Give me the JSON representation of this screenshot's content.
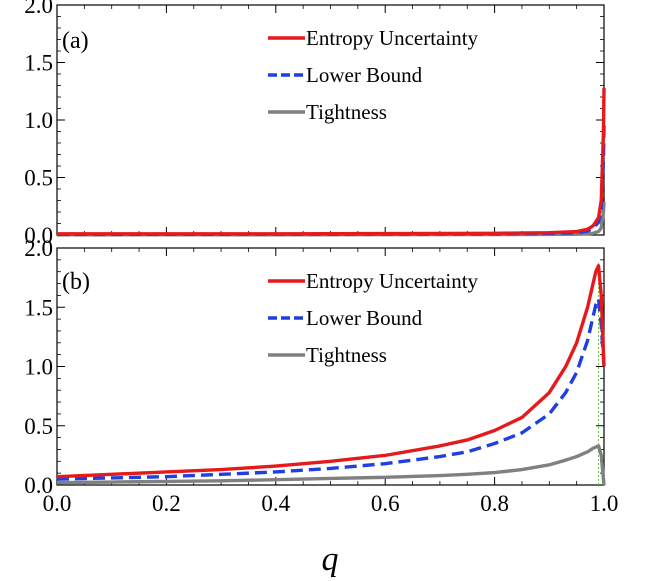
{
  "chart_data": [
    {
      "type": "line",
      "panel_label": "(a)",
      "xlim": [
        0,
        1
      ],
      "ylim": [
        0,
        2
      ],
      "yticks": [
        "0.0",
        "0.5",
        "1.0",
        "1.5",
        "2.0"
      ],
      "legend_position": "top-right",
      "series": [
        {
          "name": "Entropy Uncertainty",
          "color": "#e41a1c",
          "dash": "solid",
          "x": [
            0.0,
            0.2,
            0.4,
            0.6,
            0.8,
            0.9,
            0.95,
            0.97,
            0.98,
            0.99,
            0.995,
            0.999,
            1.0
          ],
          "y": [
            0.01,
            0.01,
            0.01,
            0.012,
            0.015,
            0.02,
            0.03,
            0.05,
            0.08,
            0.15,
            0.3,
            0.9,
            1.28
          ]
        },
        {
          "name": "Lower Bound",
          "color": "#1f3fe0",
          "dash": "dashed",
          "x": [
            0.0,
            0.2,
            0.4,
            0.6,
            0.8,
            0.9,
            0.95,
            0.97,
            0.98,
            0.99,
            0.995,
            0.999,
            1.0
          ],
          "y": [
            0.005,
            0.006,
            0.007,
            0.008,
            0.01,
            0.015,
            0.02,
            0.035,
            0.06,
            0.11,
            0.22,
            0.65,
            0.95
          ]
        },
        {
          "name": "Tightness",
          "color": "#808080",
          "dash": "solid",
          "x": [
            0.0,
            0.2,
            0.4,
            0.6,
            0.8,
            0.9,
            0.95,
            0.97,
            0.98,
            0.99,
            0.995,
            0.999,
            1.0
          ],
          "y": [
            0.002,
            0.002,
            0.002,
            0.003,
            0.004,
            0.005,
            0.007,
            0.01,
            0.015,
            0.03,
            0.06,
            0.2,
            0.29
          ]
        }
      ]
    },
    {
      "type": "line",
      "panel_label": "(b)",
      "xlim": [
        0,
        1
      ],
      "ylim": [
        0,
        2
      ],
      "xticks": [
        "0.0",
        "0.2",
        "0.4",
        "0.6",
        "0.8",
        "1.0"
      ],
      "yticks": [
        "0.0",
        "0.5",
        "1.0",
        "1.5",
        "2.0"
      ],
      "xlabel": "q",
      "legend_position": "top-right",
      "vline": {
        "x": 0.99,
        "color": "#66cc44",
        "dash": "dotted"
      },
      "series": [
        {
          "name": "Entropy Uncertainty",
          "color": "#e41a1c",
          "dash": "solid",
          "x": [
            0.0,
            0.1,
            0.2,
            0.3,
            0.4,
            0.5,
            0.6,
            0.7,
            0.75,
            0.8,
            0.85,
            0.9,
            0.93,
            0.95,
            0.97,
            0.98,
            0.985,
            0.99,
            0.995,
            1.0
          ],
          "y": [
            0.07,
            0.09,
            0.11,
            0.13,
            0.16,
            0.2,
            0.25,
            0.33,
            0.38,
            0.46,
            0.57,
            0.78,
            1.0,
            1.2,
            1.5,
            1.7,
            1.8,
            1.85,
            1.6,
            1.0
          ]
        },
        {
          "name": "Lower Bound",
          "color": "#1f3fe0",
          "dash": "dashed",
          "x": [
            0.0,
            0.1,
            0.2,
            0.3,
            0.4,
            0.5,
            0.6,
            0.7,
            0.75,
            0.8,
            0.85,
            0.9,
            0.93,
            0.95,
            0.97,
            0.98,
            0.985,
            0.99,
            0.995,
            1.0
          ],
          "y": [
            0.05,
            0.06,
            0.07,
            0.09,
            0.11,
            0.14,
            0.18,
            0.24,
            0.28,
            0.35,
            0.44,
            0.6,
            0.78,
            0.95,
            1.22,
            1.42,
            1.52,
            1.57,
            1.35,
            1.0
          ]
        },
        {
          "name": "Tightness",
          "color": "#808080",
          "dash": "solid",
          "x": [
            0.0,
            0.1,
            0.2,
            0.3,
            0.4,
            0.5,
            0.6,
            0.7,
            0.75,
            0.8,
            0.85,
            0.9,
            0.93,
            0.95,
            0.97,
            0.98,
            0.985,
            0.99,
            0.995,
            1.0
          ],
          "y": [
            0.02,
            0.025,
            0.03,
            0.035,
            0.045,
            0.055,
            0.065,
            0.08,
            0.09,
            0.105,
            0.13,
            0.17,
            0.21,
            0.24,
            0.28,
            0.31,
            0.32,
            0.33,
            0.25,
            0.0
          ]
        }
      ]
    }
  ]
}
